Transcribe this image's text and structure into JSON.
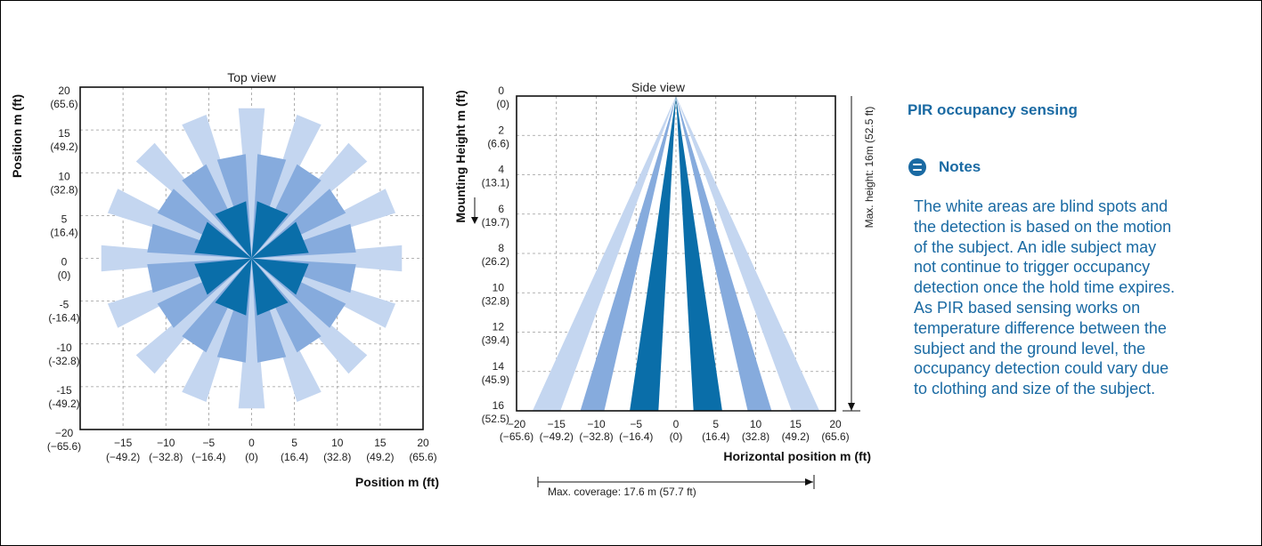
{
  "chart_data": [
    {
      "type": "polar-area",
      "title": "Top view",
      "xlabel": "Position m (ft)",
      "ylabel": "Position m (ft)",
      "xlim": [
        -20,
        20
      ],
      "ylim": [
        -20,
        20
      ],
      "grid": true,
      "x_ticks": [
        {
          "value": -15,
          "label": "−15",
          "sub": "(−49.2)"
        },
        {
          "value": -10,
          "label": "−10",
          "sub": "(−32.8)"
        },
        {
          "value": -5,
          "label": "−5",
          "sub": "(−16.4)"
        },
        {
          "value": 0,
          "label": "0",
          "sub": "(0)"
        },
        {
          "value": 5,
          "label": "5",
          "sub": "(16.4)"
        },
        {
          "value": 10,
          "label": "10",
          "sub": "(32.8)"
        },
        {
          "value": 15,
          "label": "15",
          "sub": "(49.2)"
        },
        {
          "value": 20,
          "label": "20",
          "sub": "(65.6)"
        }
      ],
      "y_ticks": [
        {
          "value": 20,
          "label": "20",
          "sub": "(65.6)"
        },
        {
          "value": 15,
          "label": "15",
          "sub": "(49.2)"
        },
        {
          "value": 10,
          "label": "10",
          "sub": "(32.8)"
        },
        {
          "value": 5,
          "label": "5",
          "sub": "(16.4)"
        },
        {
          "value": 0,
          "label": "0",
          "sub": "(0)"
        },
        {
          "value": -5,
          "label": "-5",
          "sub": "(-16.4)"
        },
        {
          "value": -10,
          "label": "-10",
          "sub": "(-32.8)"
        },
        {
          "value": -15,
          "label": "-15",
          "sub": "(-49.2)"
        },
        {
          "value": -20,
          "label": "−20",
          "sub": "(−65.6)"
        }
      ],
      "rings": [
        {
          "reach": 17.6,
          "angles_deg": [
            0,
            22.5,
            45,
            67.5,
            90,
            112.5,
            135,
            157.5,
            180,
            202.5,
            225,
            247.5,
            270,
            292.5,
            315,
            337.5
          ],
          "half_width_deg": 5,
          "color": "#c4d6f0"
        },
        {
          "reach": 12.2,
          "angles_deg": [
            11.25,
            33.75,
            56.25,
            78.75,
            101.25,
            123.75,
            146.25,
            168.75,
            191.25,
            213.75,
            236.25,
            258.75,
            281.25,
            303.75,
            326.25,
            348.75
          ],
          "half_width_deg": 8,
          "color": "#86abdd"
        },
        {
          "reach": 6.7,
          "angles_deg": [
            22.5,
            67.5,
            112.5,
            157.5,
            202.5,
            247.5,
            292.5,
            337.5
          ],
          "half_width_deg": 17,
          "color": "#0a6ea9"
        }
      ]
    },
    {
      "type": "cone",
      "title": "Side view",
      "xlabel": "Horizontal position m (ft)",
      "ylabel": "Mounting Height m (ft)",
      "xlim": [
        -20,
        20
      ],
      "ylim": [
        0,
        16
      ],
      "y_inverted": true,
      "grid": true,
      "x_ticks": [
        {
          "value": -20,
          "label": "−20",
          "sub": "(−65.6)"
        },
        {
          "value": -15,
          "label": "−15",
          "sub": "(−49.2)"
        },
        {
          "value": -10,
          "label": "−10",
          "sub": "(−32.8)"
        },
        {
          "value": -5,
          "label": "−5",
          "sub": "(−16.4)"
        },
        {
          "value": 0,
          "label": "0",
          "sub": "(0)"
        },
        {
          "value": 5,
          "label": "5",
          "sub": "(16.4)"
        },
        {
          "value": 10,
          "label": "10",
          "sub": "(32.8)"
        },
        {
          "value": 15,
          "label": "15",
          "sub": "(49.2)"
        },
        {
          "value": 20,
          "label": "20",
          "sub": "(65.6)"
        }
      ],
      "y_ticks": [
        {
          "value": 0,
          "label": "0",
          "sub": "(0)"
        },
        {
          "value": 2,
          "label": "2",
          "sub": "(6.6)"
        },
        {
          "value": 4,
          "label": "4",
          "sub": "(13.1)"
        },
        {
          "value": 6,
          "label": "6",
          "sub": "(19.7)"
        },
        {
          "value": 8,
          "label": "8",
          "sub": "(26.2)"
        },
        {
          "value": 10,
          "label": "10",
          "sub": "(32.8)"
        },
        {
          "value": 12,
          "label": "12",
          "sub": "(39.4)"
        },
        {
          "value": 14,
          "label": "14",
          "sub": "(45.9)"
        },
        {
          "value": 16,
          "label": "16",
          "sub": "(52.5)"
        }
      ],
      "apex": [
        0,
        0
      ],
      "bands": [
        {
          "x_range_at_floor": [
            -18.0,
            -14.5
          ],
          "color": "#c4d6f0"
        },
        {
          "x_range_at_floor": [
            -12.0,
            -9.0
          ],
          "color": "#86abdd"
        },
        {
          "x_range_at_floor": [
            -5.8,
            -2.2
          ],
          "color": "#0a6ea9"
        },
        {
          "x_range_at_floor": [
            2.2,
            5.8
          ],
          "color": "#0a6ea9"
        },
        {
          "x_range_at_floor": [
            9.0,
            12.0
          ],
          "color": "#86abdd"
        },
        {
          "x_range_at_floor": [
            14.5,
            18.0
          ],
          "color": "#c4d6f0"
        }
      ],
      "annotations": {
        "max_height": "Max. height: 16m (52.5 ft)",
        "max_coverage": "Max. coverage: 17.6 m (57.7 ft)"
      }
    }
  ],
  "info": {
    "title": "PIR occupancy sensing",
    "notes_icon": "notes-icon",
    "notes_label": "Notes",
    "notes_lines": [
      "The white areas are blind spots and",
      "the detection is based on the motion",
      "of the subject. An idle subject may",
      "not continue to trigger occupancy",
      "detection once the hold time expires.",
      "As PIR based sensing works on",
      "temperature difference between the",
      "subject and the ground level, the",
      "occupancy detection could vary due",
      "to clothing and size of the subject."
    ],
    "accent_color": "#1a6aa3"
  }
}
